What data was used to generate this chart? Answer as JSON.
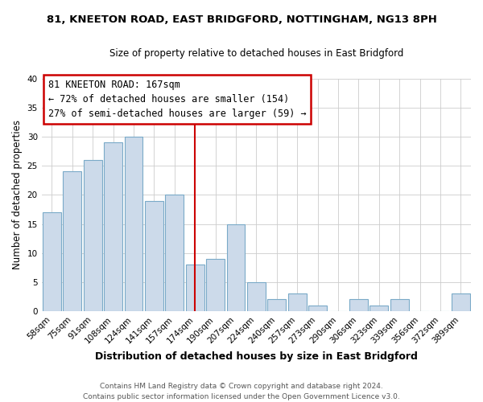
{
  "title_line1": "81, KNEETON ROAD, EAST BRIDGFORD, NOTTINGHAM, NG13 8PH",
  "title_line2": "Size of property relative to detached houses in East Bridgford",
  "xlabel": "Distribution of detached houses by size in East Bridgford",
  "ylabel": "Number of detached properties",
  "categories": [
    "58sqm",
    "75sqm",
    "91sqm",
    "108sqm",
    "124sqm",
    "141sqm",
    "157sqm",
    "174sqm",
    "190sqm",
    "207sqm",
    "224sqm",
    "240sqm",
    "257sqm",
    "273sqm",
    "290sqm",
    "306sqm",
    "323sqm",
    "339sqm",
    "356sqm",
    "372sqm",
    "389sqm"
  ],
  "values": [
    17,
    24,
    26,
    29,
    30,
    19,
    20,
    8,
    9,
    15,
    5,
    2,
    3,
    1,
    0,
    2,
    1,
    2,
    0,
    0,
    3
  ],
  "bar_color": "#ccdaea",
  "bar_edge_color": "#7aaac8",
  "ylim": [
    0,
    40
  ],
  "yticks": [
    0,
    5,
    10,
    15,
    20,
    25,
    30,
    35,
    40
  ],
  "annotation_box_text_line1": "81 KNEETON ROAD: 167sqm",
  "annotation_box_text_line2": "← 72% of detached houses are smaller (154)",
  "annotation_box_text_line3": "27% of semi-detached houses are larger (59) →",
  "marker_line_color": "#cc0000",
  "box_edge_color": "#cc0000",
  "footer_line1": "Contains HM Land Registry data © Crown copyright and database right 2024.",
  "footer_line2": "Contains public sector information licensed under the Open Government Licence v3.0.",
  "bg_color": "#ffffff",
  "plot_bg_color": "#ffffff",
  "grid_color": "#cccccc",
  "title_fontsize": 9.5,
  "subtitle_fontsize": 8.5,
  "ylabel_fontsize": 8.5,
  "xlabel_fontsize": 9,
  "tick_fontsize": 7.5,
  "ann_fontsize": 8.5,
  "footer_fontsize": 6.5
}
